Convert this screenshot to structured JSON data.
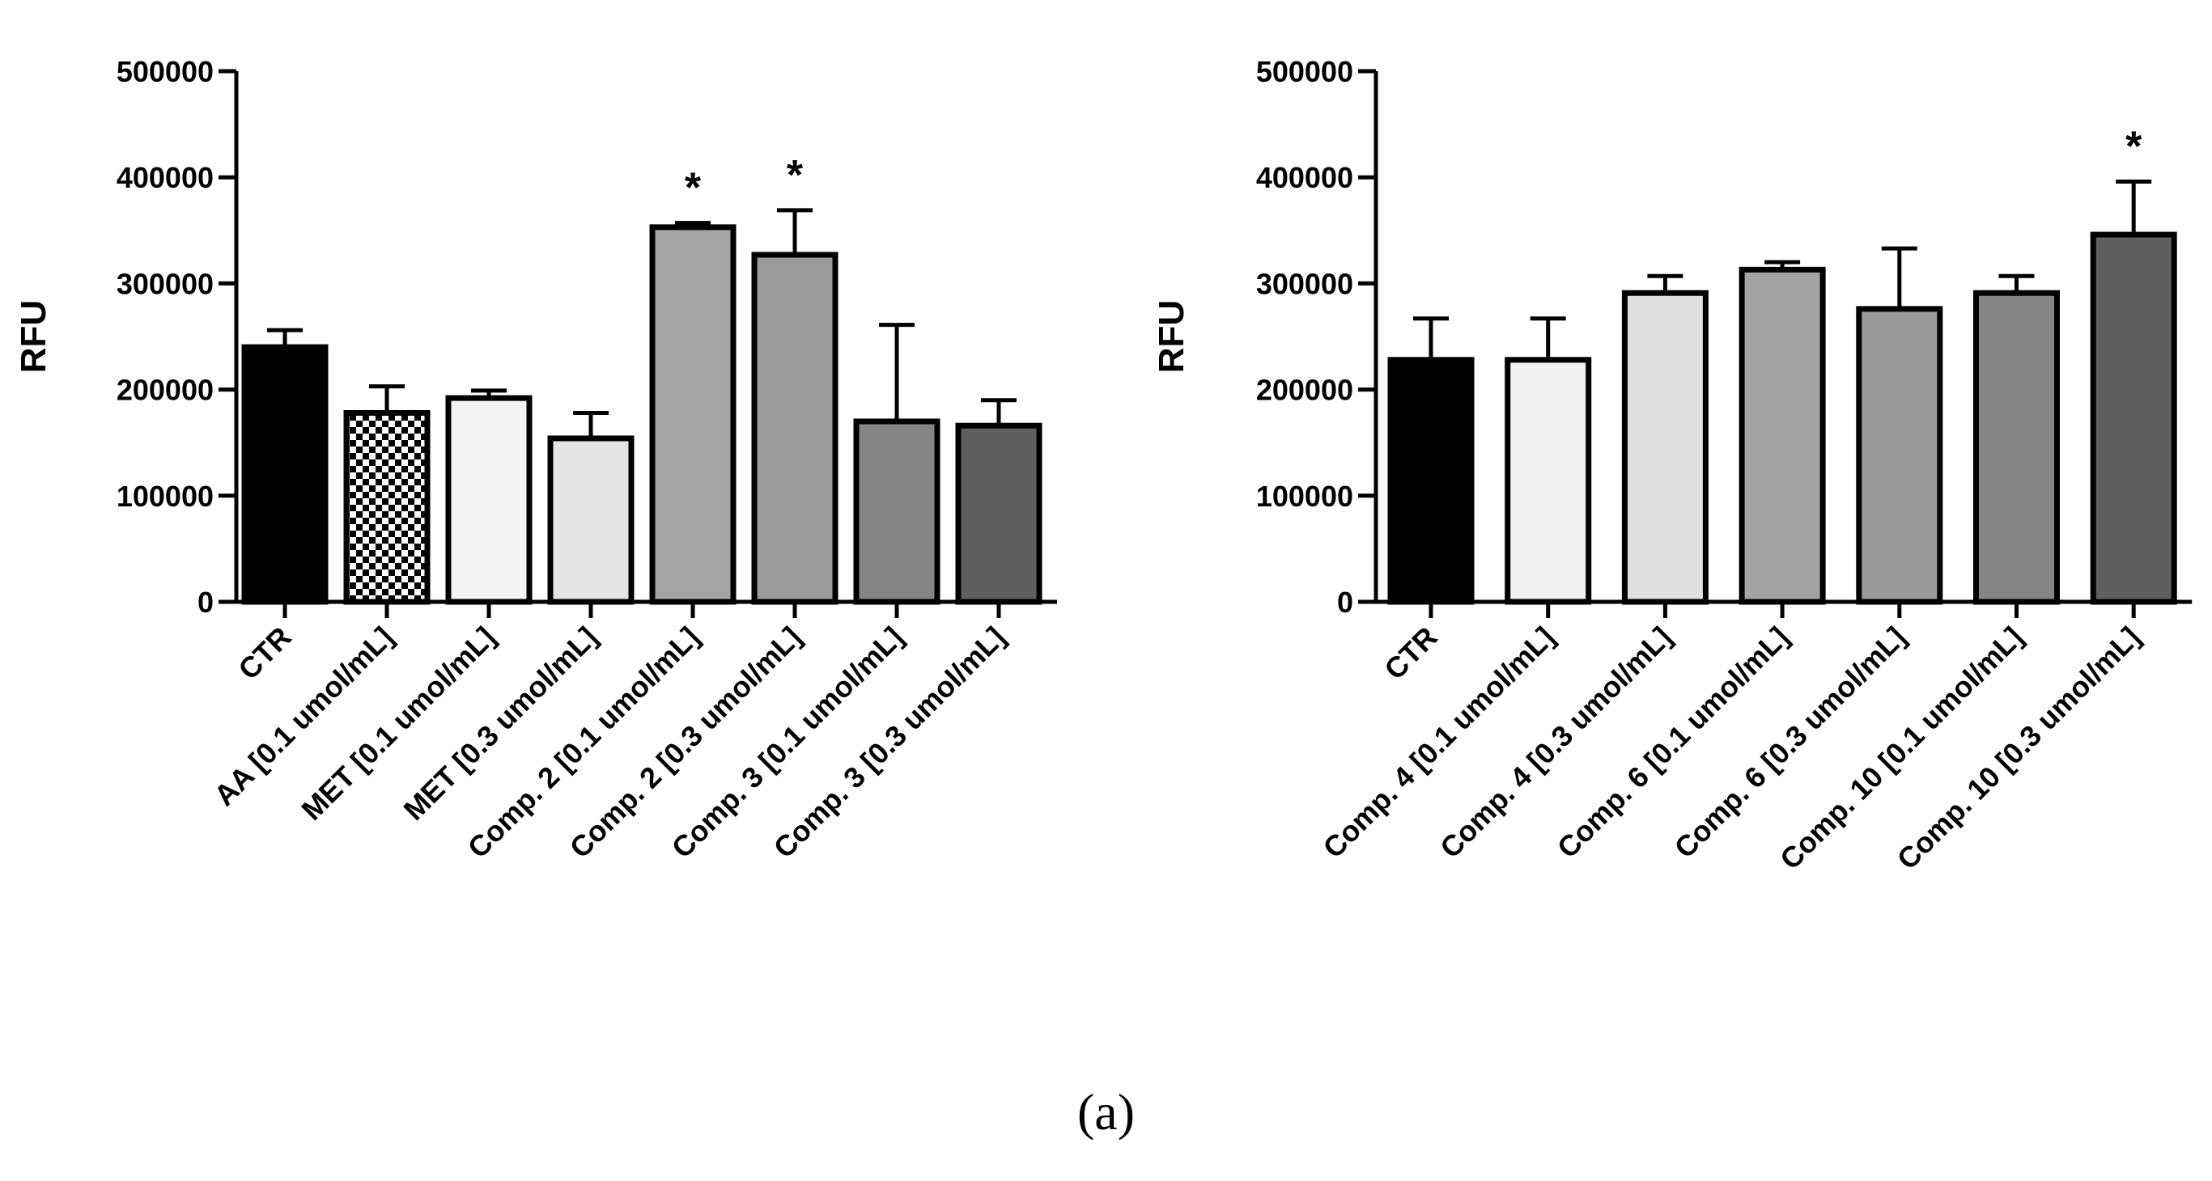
{
  "caption": "(a)",
  "chart_data": [
    {
      "type": "bar",
      "ylabel": "RFU",
      "ylim": [
        0,
        500000
      ],
      "yticks": [
        0,
        100000,
        200000,
        300000,
        400000,
        500000
      ],
      "ytick_labels": [
        "0",
        "100000",
        "200000",
        "300000",
        "400000",
        "500000"
      ],
      "categories": [
        "CTR",
        "AA [0.1 umol/mL]",
        "MET [0.1 umol/mL]",
        "MET [0.3 umol/mL]",
        "Comp. 2 [0.1 umol/mL]",
        "Comp. 2 [0.3 umol/mL]",
        "Comp. 3 [0.1 umol/mL]",
        "Comp. 3 [0.3 umol/mL]"
      ],
      "values": [
        240000,
        178000,
        192000,
        154000,
        353000,
        327000,
        170000,
        166000
      ],
      "errors": [
        16000,
        25000,
        7000,
        24000,
        4000,
        42000,
        91000,
        24000
      ],
      "significance": [
        "",
        "",
        "",
        "",
        "*",
        "*",
        "",
        ""
      ],
      "fills": [
        "#000000",
        "checker",
        "#f2f2f2",
        "#e3e3e3",
        "#a6a6a6",
        "#9b9b9b",
        "#858585",
        "#5f5f5f"
      ]
    },
    {
      "type": "bar",
      "ylabel": "RFU",
      "ylim": [
        0,
        500000
      ],
      "yticks": [
        0,
        100000,
        200000,
        300000,
        400000,
        500000
      ],
      "ytick_labels": [
        "0",
        "100000",
        "200000",
        "300000",
        "400000",
        "500000"
      ],
      "categories": [
        "CTR",
        "Comp. 4 [0.1 umol/mL]",
        "Comp. 4 [0.3 umol/mL]",
        "Comp. 6 [0.1 umol/mL]",
        "Comp. 6 [0.3 umol/mL]",
        "Comp. 10 [0.1 umol/mL]",
        "Comp. 10 [0.3 umol/mL]"
      ],
      "values": [
        228000,
        228000,
        291000,
        313000,
        276000,
        291000,
        346000
      ],
      "errors": [
        39000,
        39000,
        16000,
        7000,
        57000,
        16000,
        50000
      ],
      "significance": [
        "",
        "",
        "",
        "",
        "",
        "",
        "*"
      ],
      "fills": [
        "#000000",
        "#f0f0f0",
        "#e0e0e0",
        "#a3a3a3",
        "#9a9a9a",
        "#858585",
        "#5f5f5f"
      ]
    }
  ]
}
